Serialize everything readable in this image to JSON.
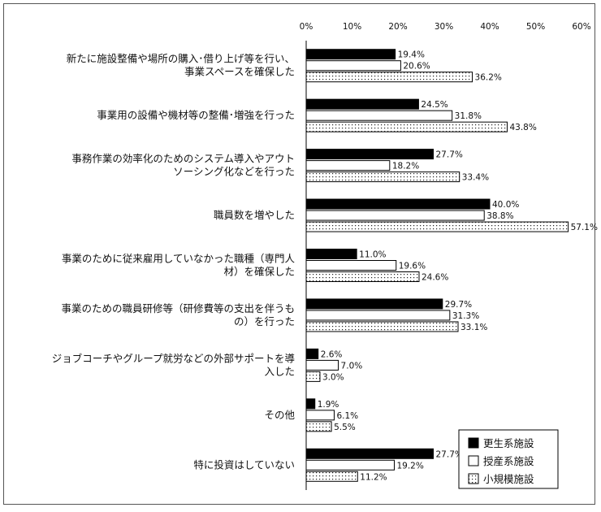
{
  "chart_data": {
    "type": "bar",
    "orientation": "horizontal",
    "xlim": [
      0,
      60
    ],
    "x_ticks": [
      "0%",
      "10%",
      "20%",
      "30%",
      "40%",
      "50%",
      "60%"
    ],
    "tick_values": [
      0,
      10,
      20,
      30,
      40,
      50,
      60
    ],
    "grid": false,
    "legend_position": "bottom-right",
    "categories": [
      [
        "新たに施設整備や場所の購入･借り上げ等を行い、",
        "事業スペースを確保した"
      ],
      [
        "事業用の設備や機材等の整備･増強を行った"
      ],
      [
        "事務作業の効率化のためのシステム導入やアウト",
        "ソーシング化などを行った"
      ],
      [
        "職員数を増やした"
      ],
      [
        "事業のために従来雇用していなかった職種（専門人",
        "材）を確保した"
      ],
      [
        "事業のための職員研修等（研修費等の支出を伴うも",
        "の）を行った"
      ],
      [
        "ジョブコーチやグループ就労などの外部サポートを導",
        "入した"
      ],
      [
        "その他"
      ],
      [
        "特に投資はしていない"
      ]
    ],
    "series": [
      {
        "name": "更生系施設",
        "color": "#000000",
        "fill": "solid",
        "values": [
          19.4,
          24.5,
          27.7,
          40.0,
          11.0,
          29.7,
          2.6,
          1.9,
          27.7
        ],
        "labels": [
          "19.4%",
          "24.5%",
          "27.7%",
          "40.0%",
          "11.0%",
          "29.7%",
          "2.6%",
          "1.9%",
          "27.7%"
        ]
      },
      {
        "name": "授産系施設",
        "color": "#ffffff",
        "fill": "outline",
        "values": [
          20.6,
          31.8,
          18.2,
          38.8,
          19.6,
          31.3,
          7.0,
          6.1,
          19.2
        ],
        "labels": [
          "20.6%",
          "31.8%",
          "18.2%",
          "38.8%",
          "19.6%",
          "31.3%",
          "7.0%",
          "6.1%",
          "19.2%"
        ]
      },
      {
        "name": "小規模施設",
        "color": "#ffffff",
        "fill": "dotted",
        "values": [
          36.2,
          43.8,
          33.4,
          57.1,
          24.6,
          33.1,
          3.0,
          5.5,
          11.2
        ],
        "labels": [
          "36.2%",
          "43.8%",
          "33.4%",
          "57.1%",
          "24.6%",
          "33.1%",
          "3.0%",
          "5.5%",
          "11.2%"
        ]
      }
    ]
  }
}
